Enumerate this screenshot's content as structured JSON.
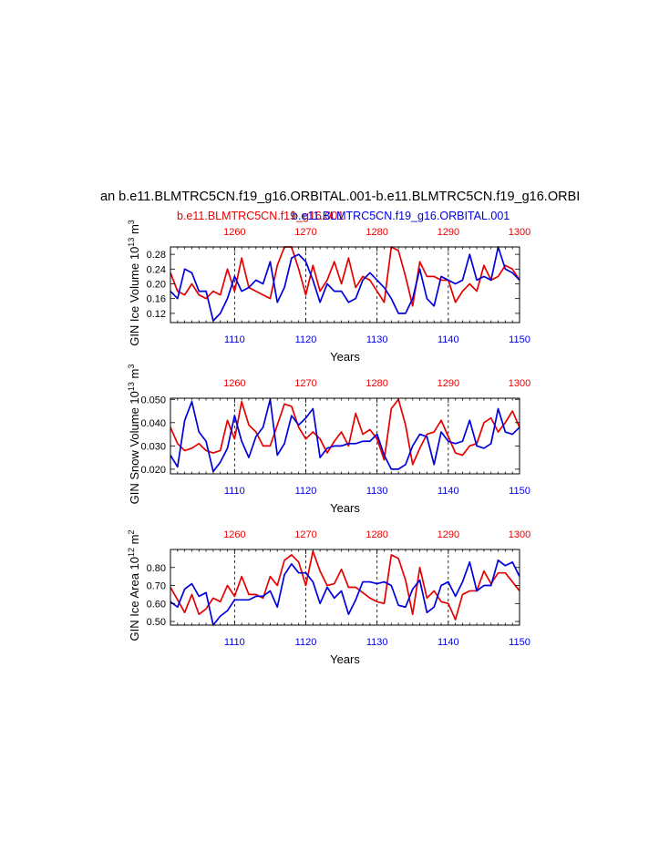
{
  "figure": {
    "title": "an b.e11.BLMTRC5CN.f19_g16.ORBITAL.001-b.e11.BLMTRC5CN.f19_g16.ORBI",
    "legend_red": "b.e11.BLMTRC5CN.f19_g16.001",
    "legend_blue": "b.e11.BLMTRC5CN.f19_g16.ORBITAL.001",
    "colors": {
      "red": "#e60000",
      "blue": "#0000dd",
      "axis": "#000000"
    }
  },
  "chart_data": [
    {
      "type": "line",
      "id": "ice-volume",
      "ylabel_main": "GIN Ice Volume 10",
      "ylabel_exp": "13",
      "ylabel_unit": " m",
      "ylabel_unit_exp": "3",
      "xlabel": "Years",
      "xlim": [
        1101,
        1150
      ],
      "top_xlim": [
        1251,
        1300
      ],
      "ylim": [
        0.095,
        0.3
      ],
      "yticks": [
        0.12,
        0.16,
        0.2,
        0.24,
        0.28
      ],
      "ytick_labels": [
        "0.12",
        "0.16",
        "0.20",
        "0.24",
        "0.28"
      ],
      "xticks": [
        1110,
        1120,
        1130,
        1140,
        1150
      ],
      "xtick_labels": [
        "1110",
        "1120",
        "1130",
        "1140",
        "1150"
      ],
      "top_xticks": [
        1260,
        1270,
        1280,
        1290,
        1300
      ],
      "top_xtick_labels": [
        "1260",
        "1270",
        "1280",
        "1290",
        "1300"
      ],
      "series": [
        {
          "name": "b.e11.BLMTRC5CN.f19_g16.ORBITAL.001",
          "color": "#0000dd",
          "values": [
            0.18,
            0.16,
            0.24,
            0.23,
            0.18,
            0.18,
            0.1,
            0.12,
            0.16,
            0.22,
            0.18,
            0.19,
            0.21,
            0.2,
            0.26,
            0.15,
            0.19,
            0.27,
            0.28,
            0.26,
            0.21,
            0.15,
            0.2,
            0.18,
            0.18,
            0.15,
            0.16,
            0.21,
            0.23,
            0.21,
            0.19,
            0.16,
            0.12,
            0.12,
            0.16,
            0.24,
            0.16,
            0.14,
            0.22,
            0.21,
            0.2,
            0.21,
            0.28,
            0.21,
            0.22,
            0.21,
            0.3,
            0.24,
            0.23,
            0.21
          ]
        },
        {
          "name": "b.e11.BLMTRC5CN.f19_g16.001",
          "color": "#e60000",
          "values": [
            0.23,
            0.18,
            0.17,
            0.2,
            0.17,
            0.16,
            0.18,
            0.17,
            0.24,
            0.18,
            0.27,
            0.19,
            0.18,
            0.17,
            0.16,
            0.25,
            0.3,
            0.3,
            0.24,
            0.17,
            0.25,
            0.18,
            0.21,
            0.26,
            0.2,
            0.27,
            0.19,
            0.22,
            0.21,
            0.18,
            0.15,
            0.3,
            0.29,
            0.22,
            0.14,
            0.26,
            0.22,
            0.22,
            0.21,
            0.21,
            0.15,
            0.18,
            0.2,
            0.18,
            0.25,
            0.21,
            0.22,
            0.25,
            0.24,
            0.21
          ]
        }
      ]
    },
    {
      "type": "line",
      "id": "snow-volume",
      "ylabel_main": "GIN Snow Volume 10",
      "ylabel_exp": "13",
      "ylabel_unit": " m",
      "ylabel_unit_exp": "3",
      "xlabel": "Years",
      "xlim": [
        1101,
        1150
      ],
      "top_xlim": [
        1251,
        1300
      ],
      "ylim": [
        0.018,
        0.0505
      ],
      "yticks": [
        0.02,
        0.03,
        0.04,
        0.05
      ],
      "ytick_labels": [
        "0.020",
        "0.030",
        "0.040",
        "0.050"
      ],
      "xticks": [
        1110,
        1120,
        1130,
        1140,
        1150
      ],
      "xtick_labels": [
        "1110",
        "1120",
        "1130",
        "1140",
        "1150"
      ],
      "top_xticks": [
        1260,
        1270,
        1280,
        1290,
        1300
      ],
      "top_xtick_labels": [
        "1260",
        "1270",
        "1280",
        "1290",
        "1300"
      ],
      "series": [
        {
          "name": "b.e11.BLMTRC5CN.f19_g16.ORBITAL.001",
          "color": "#0000dd",
          "values": [
            0.026,
            0.021,
            0.041,
            0.049,
            0.036,
            0.032,
            0.019,
            0.023,
            0.029,
            0.043,
            0.032,
            0.025,
            0.034,
            0.038,
            0.05,
            0.026,
            0.031,
            0.043,
            0.039,
            0.042,
            0.046,
            0.025,
            0.029,
            0.03,
            0.03,
            0.031,
            0.031,
            0.032,
            0.032,
            0.035,
            0.026,
            0.02,
            0.02,
            0.022,
            0.03,
            0.035,
            0.034,
            0.022,
            0.036,
            0.032,
            0.031,
            0.032,
            0.041,
            0.03,
            0.029,
            0.031,
            0.046,
            0.036,
            0.035,
            0.038
          ]
        },
        {
          "name": "b.e11.BLMTRC5CN.f19_g16.001",
          "color": "#e60000",
          "values": [
            0.038,
            0.031,
            0.028,
            0.029,
            0.031,
            0.028,
            0.027,
            0.028,
            0.041,
            0.033,
            0.049,
            0.039,
            0.036,
            0.03,
            0.03,
            0.039,
            0.048,
            0.047,
            0.038,
            0.033,
            0.036,
            0.033,
            0.027,
            0.032,
            0.036,
            0.03,
            0.044,
            0.035,
            0.037,
            0.033,
            0.024,
            0.046,
            0.05,
            0.039,
            0.022,
            0.029,
            0.035,
            0.036,
            0.041,
            0.034,
            0.027,
            0.026,
            0.03,
            0.031,
            0.04,
            0.042,
            0.036,
            0.04,
            0.045,
            0.038
          ]
        }
      ]
    },
    {
      "type": "line",
      "id": "ice-area",
      "ylabel_main": "GIN Ice Area 10",
      "ylabel_exp": "12",
      "ylabel_unit": " m",
      "ylabel_unit_exp": "2",
      "xlabel": "Years",
      "xlim": [
        1101,
        1150
      ],
      "top_xlim": [
        1251,
        1300
      ],
      "ylim": [
        0.48,
        0.9
      ],
      "yticks": [
        0.5,
        0.6,
        0.7,
        0.8
      ],
      "ytick_labels": [
        "0.50",
        "0.60",
        "0.70",
        "0.80"
      ],
      "xticks": [
        1110,
        1120,
        1130,
        1140,
        1150
      ],
      "xtick_labels": [
        "1110",
        "1120",
        "1130",
        "1140",
        "1150"
      ],
      "top_xticks": [
        1260,
        1270,
        1280,
        1290,
        1300
      ],
      "top_xtick_labels": [
        "1260",
        "1270",
        "1280",
        "1290",
        "1300"
      ],
      "series": [
        {
          "name": "b.e11.BLMTRC5CN.f19_g16.ORBITAL.001",
          "color": "#0000dd",
          "values": [
            0.61,
            0.58,
            0.68,
            0.71,
            0.64,
            0.66,
            0.48,
            0.53,
            0.56,
            0.62,
            0.62,
            0.62,
            0.64,
            0.64,
            0.67,
            0.58,
            0.76,
            0.82,
            0.77,
            0.77,
            0.72,
            0.6,
            0.69,
            0.63,
            0.67,
            0.54,
            0.62,
            0.72,
            0.72,
            0.71,
            0.72,
            0.7,
            0.59,
            0.58,
            0.68,
            0.73,
            0.55,
            0.58,
            0.7,
            0.72,
            0.64,
            0.72,
            0.83,
            0.67,
            0.7,
            0.7,
            0.84,
            0.81,
            0.83,
            0.75
          ]
        },
        {
          "name": "b.e11.BLMTRC5CN.f19_g16.001",
          "color": "#e60000",
          "values": [
            0.69,
            0.62,
            0.55,
            0.65,
            0.54,
            0.57,
            0.63,
            0.61,
            0.7,
            0.64,
            0.75,
            0.65,
            0.65,
            0.63,
            0.75,
            0.7,
            0.84,
            0.87,
            0.83,
            0.7,
            0.89,
            0.78,
            0.7,
            0.71,
            0.79,
            0.69,
            0.69,
            0.66,
            0.63,
            0.61,
            0.6,
            0.87,
            0.85,
            0.73,
            0.54,
            0.8,
            0.63,
            0.67,
            0.61,
            0.6,
            0.51,
            0.65,
            0.67,
            0.67,
            0.78,
            0.71,
            0.77,
            0.77,
            0.72,
            0.67
          ]
        }
      ]
    }
  ]
}
